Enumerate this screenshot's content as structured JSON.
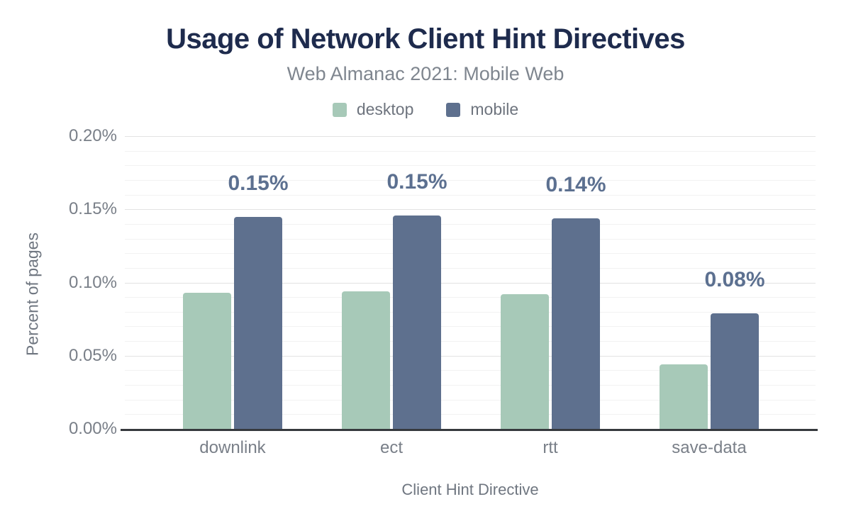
{
  "chart_data": {
    "type": "bar",
    "title": "Usage of Network Client Hint Directives",
    "subtitle": "Web Almanac 2021: Mobile Web",
    "xlabel": "Client Hint Directive",
    "ylabel": "Percent of pages",
    "categories": [
      "downlink",
      "ect",
      "rtt",
      "save-data"
    ],
    "series": [
      {
        "name": "desktop",
        "color": "#a7c9b8",
        "values": [
          0.093,
          0.094,
          0.092,
          0.044
        ]
      },
      {
        "name": "mobile",
        "color": "#5e708e",
        "values": [
          0.145,
          0.146,
          0.144,
          0.079
        ],
        "data_labels": [
          "0.15%",
          "0.15%",
          "0.14%",
          "0.08%"
        ]
      }
    ],
    "y_axis": {
      "min": 0,
      "max": 0.2,
      "major_tick_step": 0.05,
      "minor_tick_step": 0.01,
      "tick_labels": [
        "0.00%",
        "0.05%",
        "0.10%",
        "0.15%",
        "0.20%"
      ],
      "unit": "%"
    },
    "legend_position": "top",
    "grid": true,
    "data_label_series": "mobile"
  },
  "style": {
    "background": "#ffffff",
    "title_color": "#1e2b4d",
    "subtitle_color": "#7f868f",
    "legend_text_color": "#6e747e",
    "tick_color": "#797f88",
    "axis_title_color": "#6f7680",
    "data_label_color": "#5c7090",
    "grid_major_color": "#e2e2e2",
    "grid_minor_color": "#f2f2f2",
    "axis_line_color": "#36393d"
  }
}
